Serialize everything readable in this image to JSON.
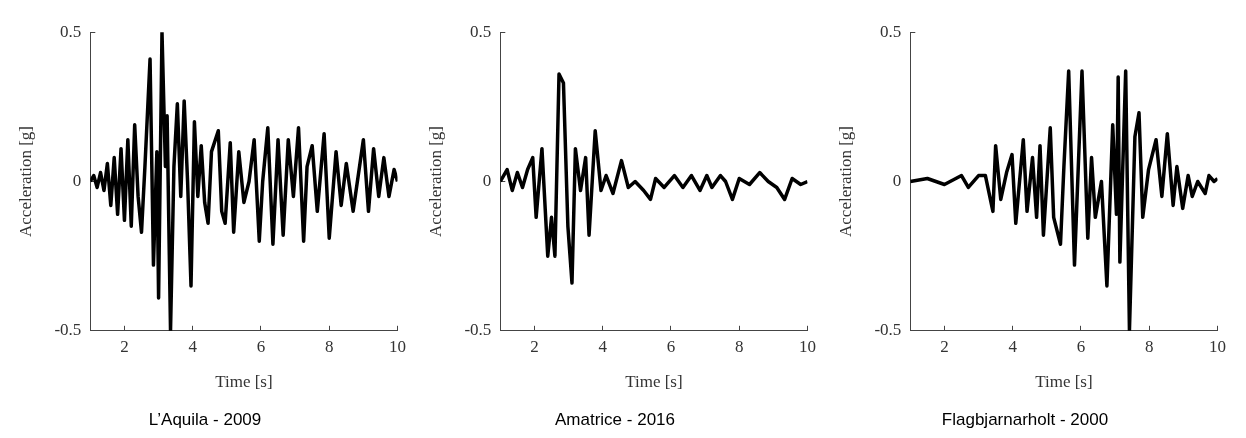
{
  "chart_data": [
    {
      "type": "line",
      "title": "L’Aquila - 2009",
      "xlabel": "Time [s]",
      "ylabel": "Acceleration [g]",
      "xlim": [
        1,
        10
      ],
      "xticks": [
        2,
        4,
        6,
        8,
        10
      ],
      "ylim": [
        -0.5,
        0.5
      ],
      "yticks": [
        -0.5,
        0,
        0.5
      ],
      "grid": false,
      "legend": false,
      "marker": "none",
      "line_style": "solid",
      "series": [
        {
          "color": "#000000",
          "x": [
            1.0,
            1.1,
            1.2,
            1.3,
            1.4,
            1.5,
            1.6,
            1.7,
            1.8,
            1.9,
            2.0,
            2.1,
            2.2,
            2.3,
            2.4,
            2.5,
            2.6,
            2.75,
            2.85,
            2.95,
            3.0,
            3.1,
            3.2,
            3.25,
            3.35,
            3.45,
            3.55,
            3.65,
            3.75,
            3.85,
            3.95,
            4.05,
            4.15,
            4.25,
            4.35,
            4.45,
            4.55,
            4.75,
            4.85,
            4.95,
            5.1,
            5.2,
            5.35,
            5.5,
            5.65,
            5.8,
            5.95,
            6.05,
            6.2,
            6.35,
            6.5,
            6.65,
            6.8,
            6.95,
            7.1,
            7.25,
            7.35,
            7.5,
            7.65,
            7.85,
            8.0,
            8.2,
            8.35,
            8.5,
            8.7,
            9.0,
            9.15,
            9.3,
            9.45,
            9.6,
            9.75,
            9.9,
            10.0
          ],
          "values": [
            0.0,
            0.02,
            -0.02,
            0.03,
            -0.03,
            0.06,
            -0.08,
            0.08,
            -0.11,
            0.11,
            -0.13,
            0.14,
            -0.15,
            0.19,
            -0.05,
            -0.17,
            0.05,
            0.41,
            -0.28,
            0.1,
            -0.39,
            0.5,
            0.05,
            0.22,
            -0.5,
            0.05,
            0.26,
            -0.05,
            0.27,
            0.0,
            -0.35,
            0.2,
            -0.05,
            0.12,
            -0.07,
            -0.14,
            0.1,
            0.17,
            -0.1,
            -0.14,
            0.13,
            -0.17,
            0.1,
            -0.07,
            0.0,
            0.14,
            -0.2,
            0.0,
            0.18,
            -0.21,
            0.14,
            -0.18,
            0.14,
            -0.05,
            0.18,
            -0.2,
            0.05,
            0.12,
            -0.1,
            0.16,
            -0.19,
            0.1,
            -0.08,
            0.06,
            -0.1,
            0.14,
            -0.1,
            0.11,
            -0.05,
            0.08,
            -0.05,
            0.04,
            0.0
          ]
        }
      ]
    },
    {
      "type": "line",
      "title": "Amatrice - 2016",
      "xlabel": "Time [s]",
      "ylabel": "Acceleration [g]",
      "xlim": [
        1,
        10
      ],
      "xticks": [
        2,
        4,
        6,
        8,
        10
      ],
      "ylim": [
        -0.5,
        0.5
      ],
      "yticks": [
        -0.5,
        0,
        0.5
      ],
      "grid": false,
      "legend": false,
      "marker": "none",
      "line_style": "solid",
      "series": [
        {
          "color": "#000000",
          "x": [
            1.0,
            1.2,
            1.35,
            1.5,
            1.65,
            1.8,
            1.95,
            2.05,
            2.22,
            2.39,
            2.5,
            2.6,
            2.72,
            2.85,
            2.98,
            3.1,
            3.2,
            3.35,
            3.5,
            3.6,
            3.78,
            3.95,
            4.1,
            4.3,
            4.55,
            4.75,
            4.95,
            5.2,
            5.4,
            5.55,
            5.8,
            6.1,
            6.35,
            6.6,
            6.85,
            7.05,
            7.2,
            7.45,
            7.6,
            7.8,
            8.0,
            8.3,
            8.6,
            8.85,
            9.1,
            9.33,
            9.55,
            9.8,
            10.0
          ],
          "values": [
            0.0,
            0.04,
            -0.03,
            0.03,
            -0.02,
            0.04,
            0.08,
            -0.12,
            0.11,
            -0.25,
            -0.12,
            -0.25,
            0.36,
            0.33,
            -0.15,
            -0.34,
            0.11,
            -0.03,
            0.08,
            -0.18,
            0.17,
            -0.03,
            0.02,
            -0.04,
            0.07,
            -0.02,
            0.0,
            -0.03,
            -0.06,
            0.01,
            -0.02,
            0.02,
            -0.02,
            0.02,
            -0.03,
            0.02,
            -0.02,
            0.02,
            0.0,
            -0.06,
            0.01,
            -0.01,
            0.03,
            0.0,
            -0.02,
            -0.06,
            0.01,
            -0.01,
            0.0
          ]
        }
      ]
    },
    {
      "type": "line",
      "title": "Flagbjarnarholt - 2000",
      "xlabel": "Time [s]",
      "ylabel": "Acceleration [g]",
      "xlim": [
        1,
        10
      ],
      "xticks": [
        2,
        4,
        6,
        8,
        10
      ],
      "ylim": [
        -0.5,
        0.5
      ],
      "yticks": [
        -0.5,
        0,
        0.5
      ],
      "grid": false,
      "legend": false,
      "marker": "none",
      "line_style": "solid",
      "series": [
        {
          "color": "#000000",
          "x": [
            1.0,
            1.5,
            2.0,
            2.5,
            2.7,
            3.0,
            3.2,
            3.42,
            3.5,
            3.65,
            3.82,
            3.98,
            4.09,
            4.31,
            4.42,
            4.58,
            4.7,
            4.8,
            4.9,
            5.1,
            5.2,
            5.4,
            5.5,
            5.64,
            5.81,
            6.03,
            6.2,
            6.31,
            6.42,
            6.6,
            6.76,
            6.93,
            7.04,
            7.09,
            7.14,
            7.31,
            7.42,
            7.58,
            7.7,
            7.81,
            7.98,
            8.2,
            8.37,
            8.53,
            8.7,
            8.81,
            8.98,
            9.14,
            9.26,
            9.42,
            9.64,
            9.75,
            9.9,
            10.0
          ],
          "values": [
            0.0,
            0.01,
            -0.01,
            0.02,
            -0.02,
            0.02,
            0.02,
            -0.1,
            0.12,
            -0.06,
            0.03,
            0.09,
            -0.14,
            0.14,
            -0.1,
            0.08,
            -0.12,
            0.12,
            -0.18,
            0.18,
            -0.12,
            -0.21,
            0.05,
            0.37,
            -0.28,
            0.37,
            -0.19,
            0.08,
            -0.12,
            0.0,
            -0.35,
            0.19,
            -0.11,
            0.35,
            -0.27,
            0.37,
            -0.5,
            0.15,
            0.23,
            -0.12,
            0.04,
            0.14,
            -0.05,
            0.16,
            -0.08,
            0.05,
            -0.09,
            0.02,
            -0.05,
            0.0,
            -0.04,
            0.02,
            0.0,
            0.01
          ]
        }
      ]
    }
  ]
}
